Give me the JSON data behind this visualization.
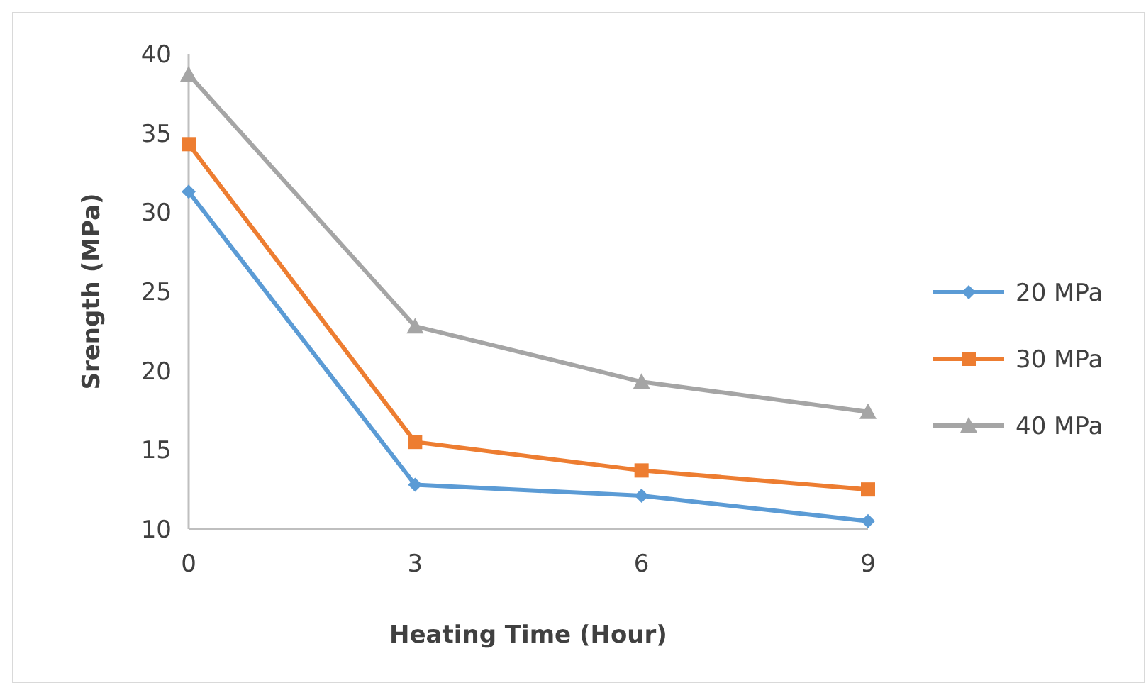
{
  "chart_data": {
    "type": "line",
    "xlabel": "Heating  Time (Hour)",
    "ylabel": "Srength (MPa)",
    "x": [
      0,
      3,
      6,
      9
    ],
    "xlim": [
      0,
      9
    ],
    "xticks": [
      0,
      3,
      6,
      9
    ],
    "ylim": [
      10,
      40
    ],
    "yticks": [
      10,
      15,
      20,
      25,
      30,
      35,
      40
    ],
    "grid": false,
    "legend": "right",
    "series": [
      {
        "name": "20 MPa",
        "color": "#5b9bd5",
        "marker": "diamond",
        "values": [
          31.3,
          12.8,
          12.1,
          10.5
        ]
      },
      {
        "name": "30 MPa",
        "color": "#ed7d31",
        "marker": "square",
        "values": [
          34.3,
          15.5,
          13.7,
          12.5
        ]
      },
      {
        "name": "40 MPa",
        "color": "#a5a5a5",
        "marker": "triangle",
        "values": [
          38.7,
          22.8,
          19.3,
          17.4
        ]
      }
    ]
  }
}
